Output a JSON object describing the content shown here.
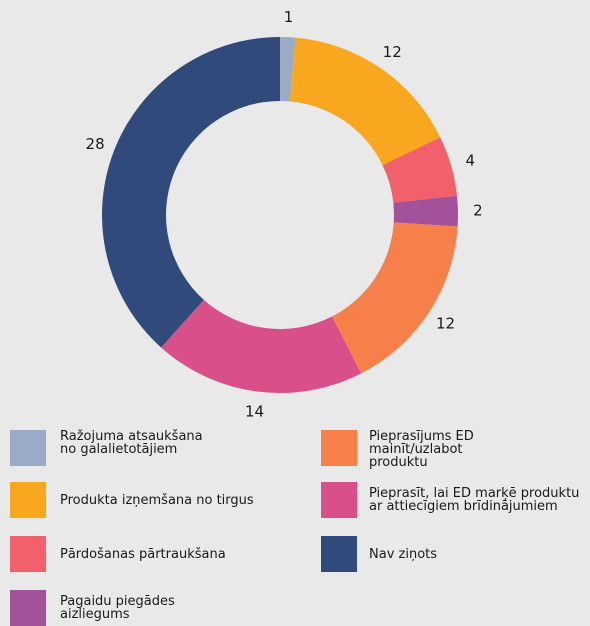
{
  "chart_data": {
    "type": "pie",
    "subtype": "donut",
    "series": [
      {
        "label": "Ražojuma atsaukšana\nno galalietotājiem",
        "value": 1,
        "color": "#9aabc6"
      },
      {
        "label": "Produkta izņemšana no tirgus",
        "value": 12,
        "color": "#f9a71e"
      },
      {
        "label": "Pārdošanas pārtraukšana",
        "value": 4,
        "color": "#f2606b"
      },
      {
        "label": "Pagaidu piegādes\naizliegums",
        "value": 2,
        "color": "#a3519a"
      },
      {
        "label": "Pieprasījums ED\nmainīt/uzlabot\nproduktu",
        "value": 12,
        "color": "#f7804a"
      },
      {
        "label": "Pieprasīt, lai ED marķē produktu\nar attiecīgiem brīdinājumiem",
        "value": 14,
        "color": "#d94f8a"
      },
      {
        "label": "Nav ziņots",
        "value": 28,
        "color": "#314a7c"
      }
    ],
    "legend_placement": "bottom"
  }
}
